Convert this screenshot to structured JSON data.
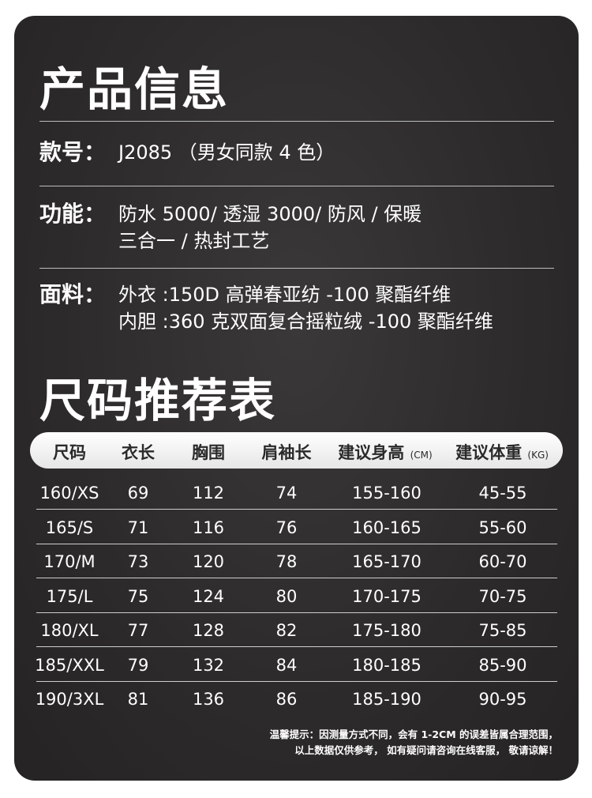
{
  "product_info": {
    "title": "产品信息",
    "model_label": "款号：",
    "model_value": "J2085 （男女同款 4 色）",
    "function_label": "功能：",
    "function_lines": [
      "防水 5000/ 透湿 3000/ 防风 / 保暖",
      "三合一 / 热封工艺"
    ],
    "fabric_label": "面料：",
    "fabric_lines": [
      "外衣 :150D 高弹春亚纺 -100 聚酯纤维",
      "内胆 :360 克双面复合摇粒绒 -100 聚酯纤维"
    ]
  },
  "size_chart": {
    "title": "尺码推荐表",
    "headers": [
      {
        "text": "尺码"
      },
      {
        "text": "衣长"
      },
      {
        "text": "胸围"
      },
      {
        "text": "肩袖长"
      },
      {
        "text": "建议身高",
        "unit": "(CM)"
      },
      {
        "text": "建议体重",
        "unit": "(KG)"
      }
    ],
    "rows": [
      [
        "160/XS",
        "69",
        "112",
        "74",
        "155-160",
        "45-55"
      ],
      [
        "165/S",
        "71",
        "116",
        "76",
        "160-165",
        "55-60"
      ],
      [
        "170/M",
        "73",
        "120",
        "78",
        "165-170",
        "60-70"
      ],
      [
        "175/L",
        "75",
        "124",
        "80",
        "170-175",
        "70-75"
      ],
      [
        "180/XL",
        "77",
        "128",
        "82",
        "175-180",
        "75-85"
      ],
      [
        "185/XXL",
        "79",
        "132",
        "84",
        "180-185",
        "85-90"
      ],
      [
        "190/3XL",
        "81",
        "136",
        "86",
        "185-190",
        "90-95"
      ]
    ],
    "note_lines": [
      "温馨提示：因测量方式不同，会有 1-2CM 的误差皆属合理范围，",
      "以上数据仅供参考， 如有疑问请咨询在线客服， 敬请谅解！"
    ]
  }
}
